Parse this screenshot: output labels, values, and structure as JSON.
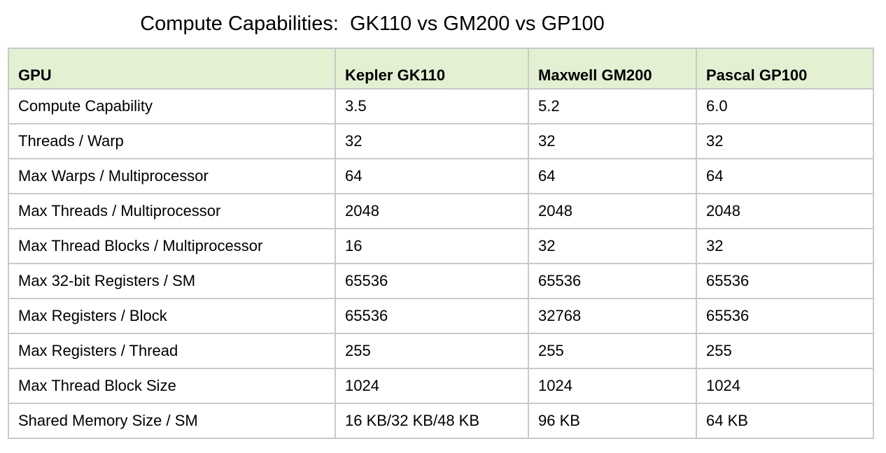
{
  "title": "Compute Capabilities:  GK110 vs GM200 vs GP100",
  "colors": {
    "header_background": "#e3f0d2",
    "border": "#c9c9c9"
  },
  "table": {
    "headers": [
      "GPU",
      "Kepler GK110",
      "Maxwell GM200",
      "Pascal GP100"
    ],
    "rows": [
      [
        "Compute Capability",
        "3.5",
        "5.2",
        "6.0"
      ],
      [
        "Threads / Warp",
        "32",
        "32",
        "32"
      ],
      [
        "Max Warps / Multiprocessor",
        "64",
        "64",
        "64"
      ],
      [
        "Max Threads / Multiprocessor",
        "2048",
        "2048",
        "2048"
      ],
      [
        "Max Thread Blocks / Multiprocessor",
        "16",
        "32",
        "32"
      ],
      [
        "Max 32-bit Registers / SM",
        "65536",
        "65536",
        "65536"
      ],
      [
        "Max Registers / Block",
        "65536",
        "32768",
        "65536"
      ],
      [
        "Max Registers / Thread",
        "255",
        "255",
        "255"
      ],
      [
        "Max Thread Block Size",
        "1024",
        "1024",
        "1024"
      ],
      [
        "Shared Memory Size / SM",
        "16 KB/32 KB/48 KB",
        "96 KB",
        "64 KB"
      ]
    ]
  }
}
